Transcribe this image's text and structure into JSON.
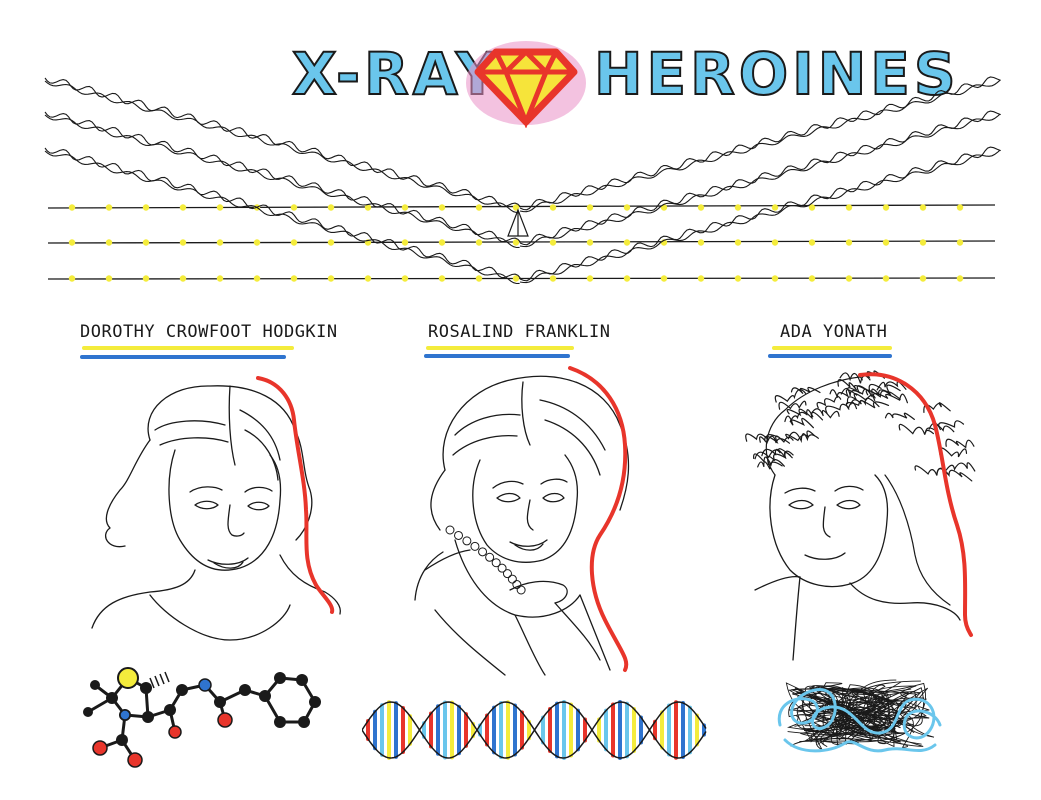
{
  "title": {
    "left": "X-RAY",
    "right": "HEROINES",
    "icon": "diamond-icon"
  },
  "colors": {
    "cyan": "#6ac6ec",
    "yellow": "#f4ec3c",
    "red": "#e8352b",
    "blue": "#2f74cf",
    "pink": "#e98fc7",
    "ink": "#1a1a1a"
  },
  "heroines": [
    {
      "name": "DOROTHY CROWFOOT HODGKIN"
    },
    {
      "name": "ROSALIND FRANKLIN"
    },
    {
      "name": "ADA YONATH"
    }
  ]
}
